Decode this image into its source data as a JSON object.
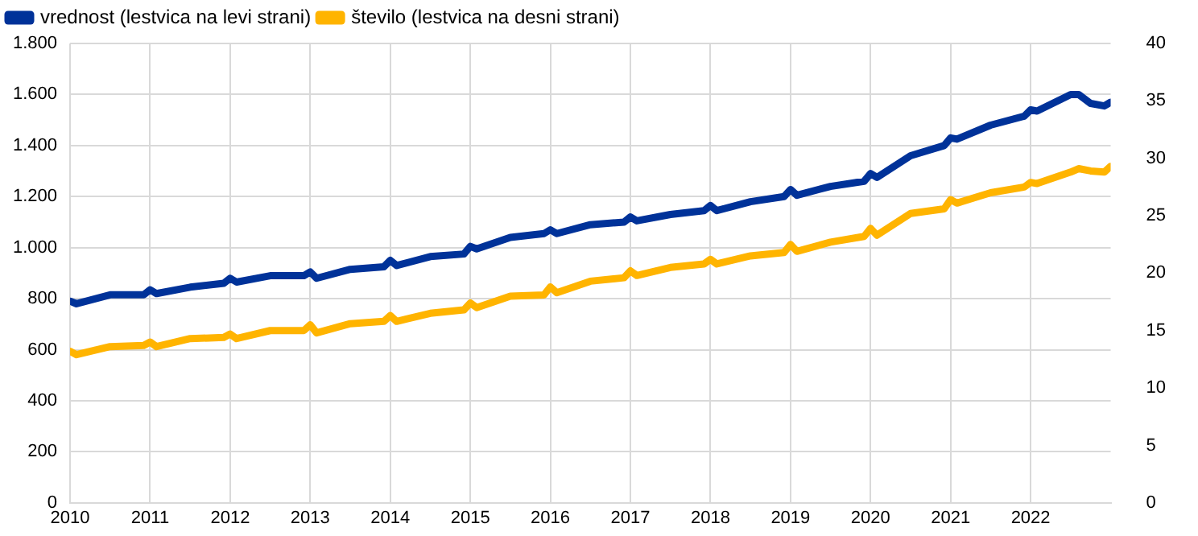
{
  "chart_data": {
    "type": "line",
    "legend": "top left",
    "grid": true,
    "marker": "none",
    "line_style": "solid",
    "xlim": [
      2010,
      2023
    ],
    "xticks": [
      2010,
      2011,
      2012,
      2013,
      2014,
      2015,
      2016,
      2017,
      2018,
      2019,
      2020,
      2021,
      2022
    ],
    "ylim": [
      0,
      1800
    ],
    "yticks": [
      0,
      200,
      400,
      600,
      800,
      {
        "value": 1000,
        "label": "1.000"
      },
      {
        "value": 1200,
        "label": "1.200"
      },
      {
        "value": 1400,
        "label": "1.400"
      },
      {
        "value": 1600,
        "label": "1.600"
      },
      {
        "value": 1800,
        "label": "1.800"
      }
    ],
    "y2lim": [
      0,
      40
    ],
    "y2ticks": [
      0,
      5,
      10,
      15,
      20,
      25,
      30,
      35,
      40
    ],
    "x": [
      2010,
      2010.08,
      2010.5,
      2010.92,
      2011,
      2011.08,
      2011.5,
      2011.92,
      2012,
      2012.08,
      2012.5,
      2012.92,
      2013,
      2013.08,
      2013.5,
      2013.92,
      2014,
      2014.08,
      2014.5,
      2014.92,
      2015,
      2015.08,
      2015.5,
      2015.92,
      2016,
      2016.08,
      2016.5,
      2016.92,
      2017,
      2017.08,
      2017.5,
      2017.92,
      2018,
      2018.08,
      2018.5,
      2018.92,
      2019,
      2019.08,
      2019.5,
      2019.92,
      2020,
      2020.08,
      2020.5,
      2020.92,
      2021,
      2021.08,
      2021.5,
      2021.92,
      2022,
      2022.08,
      2022.5,
      2022.6,
      2022.75,
      2022.92,
      2023
    ],
    "series": [
      {
        "name": "vrednost (lestvica na levi strani)",
        "color": "#003299",
        "values": [
          790,
          780,
          815,
          815,
          835,
          820,
          845,
          860,
          880,
          865,
          890,
          890,
          905,
          880,
          915,
          925,
          950,
          930,
          965,
          975,
          1005,
          995,
          1040,
          1055,
          1070,
          1055,
          1090,
          1100,
          1120,
          1105,
          1130,
          1145,
          1165,
          1145,
          1180,
          1200,
          1228,
          1205,
          1240,
          1260,
          1290,
          1275,
          1360,
          1400,
          1430,
          1425,
          1480,
          1515,
          1540,
          1535,
          1600,
          1600,
          1565,
          1555,
          1570
        ]
      },
      {
        "name": "število (lestvica na desni strani)",
        "color": "#ffb400",
        "axis": "y2",
        "values": [
          13.2,
          12.9,
          13.6,
          13.7,
          14.0,
          13.6,
          14.3,
          14.4,
          14.7,
          14.3,
          15.0,
          15.0,
          15.5,
          14.8,
          15.6,
          15.8,
          16.3,
          15.8,
          16.5,
          16.8,
          17.4,
          17.0,
          18.0,
          18.1,
          18.8,
          18.3,
          19.3,
          19.6,
          20.2,
          19.8,
          20.5,
          20.8,
          21.2,
          20.8,
          21.5,
          21.8,
          22.5,
          21.9,
          22.7,
          23.2,
          23.9,
          23.3,
          25.2,
          25.6,
          26.4,
          26.1,
          27.0,
          27.5,
          27.9,
          27.8,
          28.8,
          29.1,
          28.9,
          28.8,
          29.3
        ]
      }
    ]
  }
}
